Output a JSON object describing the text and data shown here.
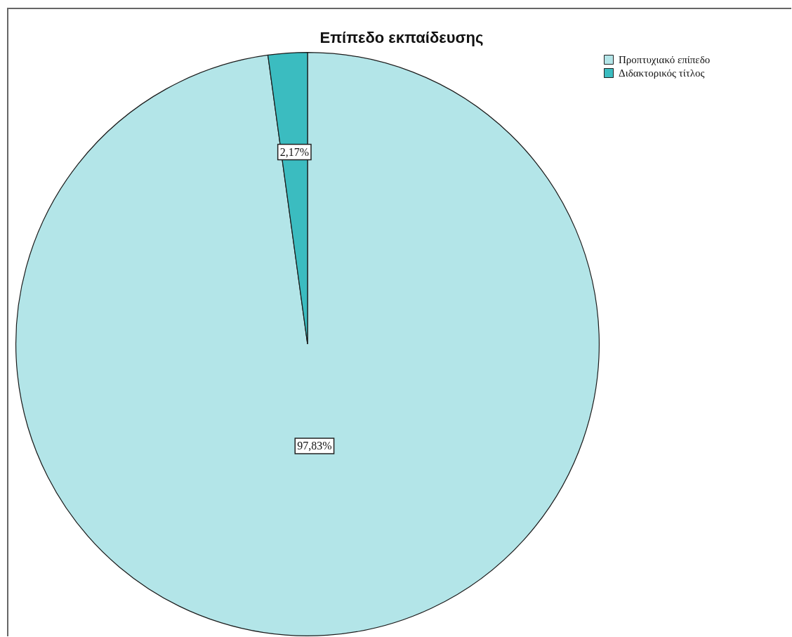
{
  "chart_data": {
    "type": "pie",
    "title": "Επίπεδο εκπαίδευσης",
    "categories": [
      "Προπτυχιακό επίπεδο",
      "Διδακτορικός τίτλος"
    ],
    "values": [
      97.83,
      2.17
    ],
    "colors": [
      "#b3e5e8",
      "#3bbcc0"
    ],
    "value_labels": [
      "97,83%",
      "2,17%"
    ],
    "legend": "top right"
  }
}
